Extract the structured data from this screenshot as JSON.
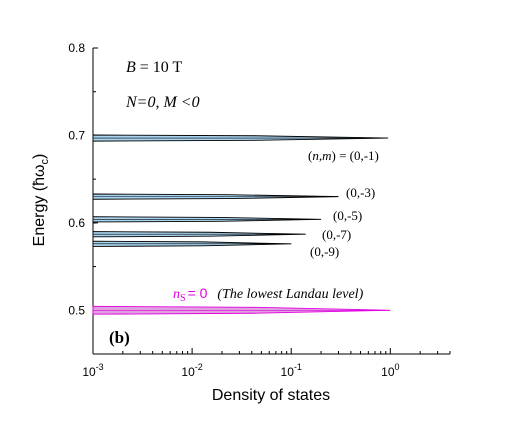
{
  "chart_data": {
    "type": "area",
    "xlabel": "Density of states",
    "ylabel": "Energy  (ħω",
    "ylabel_sub": "c",
    "ylabel_close": ")",
    "xscale": "log",
    "xlim": [
      0.001,
      4
    ],
    "ylim": [
      0.45,
      0.8
    ],
    "yticks": [
      0.5,
      0.6,
      0.7,
      0.8
    ],
    "ytick_labels": [
      "0.5",
      "0.6",
      "0.7",
      "0.8"
    ],
    "xticks": [
      0.001,
      0.01,
      0.1,
      1
    ],
    "xtick_bases": [
      "10",
      "10",
      "10",
      "10"
    ],
    "xtick_exponents": [
      "-3",
      "-2",
      "-1",
      "0"
    ],
    "panel_label": "(b)",
    "annotations": {
      "field_var": "B",
      "field_value": " = 10 T",
      "quantum_numbers": "N=0, M <0"
    },
    "series": [
      {
        "label_pre": "(",
        "label_vars": "n,m",
        "label_post": ") = (0,-1)",
        "energy": 0.697,
        "width": 0.007,
        "peak_dos": 0.95,
        "color": "#a8d4ef"
      },
      {
        "label": "(0,-3)",
        "energy": 0.63,
        "width": 0.006,
        "peak_dos": 0.3,
        "color": "#a8d4ef"
      },
      {
        "label": "(0,-5)",
        "energy": 0.604,
        "width": 0.006,
        "peak_dos": 0.2,
        "color": "#a8d4ef"
      },
      {
        "label": "(0,-7)",
        "energy": 0.587,
        "width": 0.006,
        "peak_dos": 0.14,
        "color": "#a8d4ef"
      },
      {
        "label": "(0,-9)",
        "energy": 0.576,
        "width": 0.006,
        "peak_dos": 0.1,
        "color": "#a8d4ef"
      },
      {
        "label_var": "n",
        "label_sub": "S",
        "label_eq": "= 0",
        "label_desc": "(The lowest Landau level)",
        "energy": 0.5,
        "width": 0.009,
        "peak_dos": 1.0,
        "color": "#e0a0e0",
        "edge": "#e000e0",
        "text_color": "#e000e0"
      }
    ]
  }
}
